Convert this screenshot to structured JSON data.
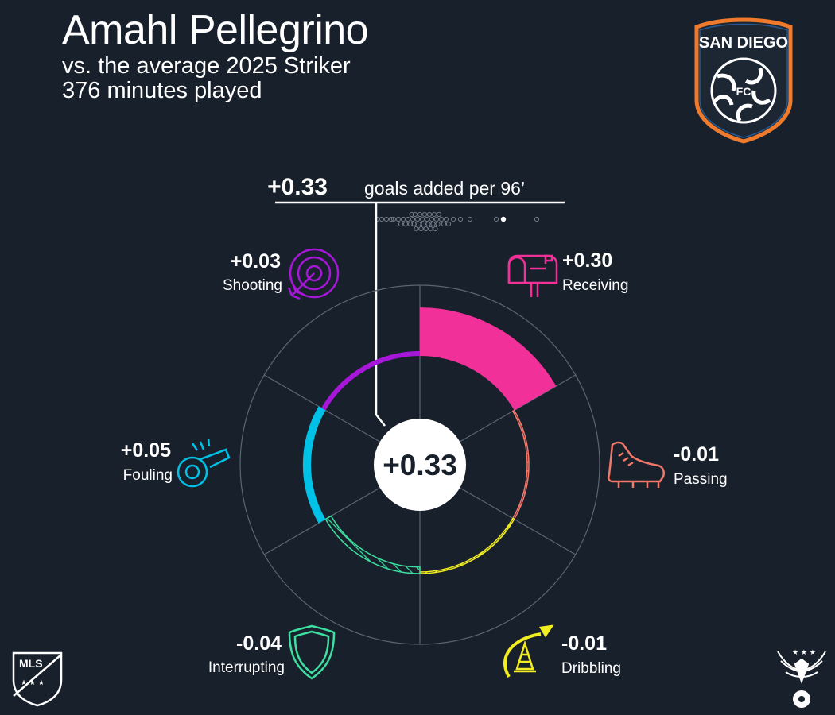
{
  "header": {
    "player_name": "Amahl Pellegrino",
    "comparison": "vs. the average 2025 Striker",
    "minutes": "376 minutes played"
  },
  "club_logo": {
    "text": "SAN DIEGO",
    "monogram": "FC",
    "icon": "san-diego-fc-crest"
  },
  "league_logo": {
    "text": "MLS",
    "icon": "mls-logo"
  },
  "brand_logo": {
    "icon": "eagle-soccer-ball-logo"
  },
  "colors": {
    "background": "#18202b",
    "Receiving": "#f2309a",
    "Passing": "#f0776a",
    "Dribbling": "#f2ee1f",
    "Interrupting": "#3de0a0",
    "Fouling": "#00c2e6",
    "Shooting": "#a617d9"
  },
  "chart_data": {
    "type": "radial-bar",
    "total": {
      "value": "+0.33",
      "value_text": "+0.33",
      "label": "goals added per 96’"
    },
    "center_value": "+0.33",
    "distribution_dot_label": "player position on league distribution",
    "radial_scale": {
      "min": -0.1,
      "max": 0.4
    },
    "categories": [
      {
        "name": "Receiving",
        "value": 0.3,
        "value_text": "+0.30",
        "icon": "mailbox-icon"
      },
      {
        "name": "Passing",
        "value": -0.01,
        "value_text": "-0.01",
        "icon": "cleat-icon"
      },
      {
        "name": "Dribbling",
        "value": -0.01,
        "value_text": "-0.01",
        "icon": "cone-icon"
      },
      {
        "name": "Interrupting",
        "value": -0.04,
        "value_text": "-0.04",
        "icon": "shield-icon"
      },
      {
        "name": "Fouling",
        "value": 0.05,
        "value_text": "+0.05",
        "icon": "whistle-icon"
      },
      {
        "name": "Shooting",
        "value": 0.03,
        "value_text": "+0.03",
        "icon": "target-icon"
      }
    ]
  }
}
